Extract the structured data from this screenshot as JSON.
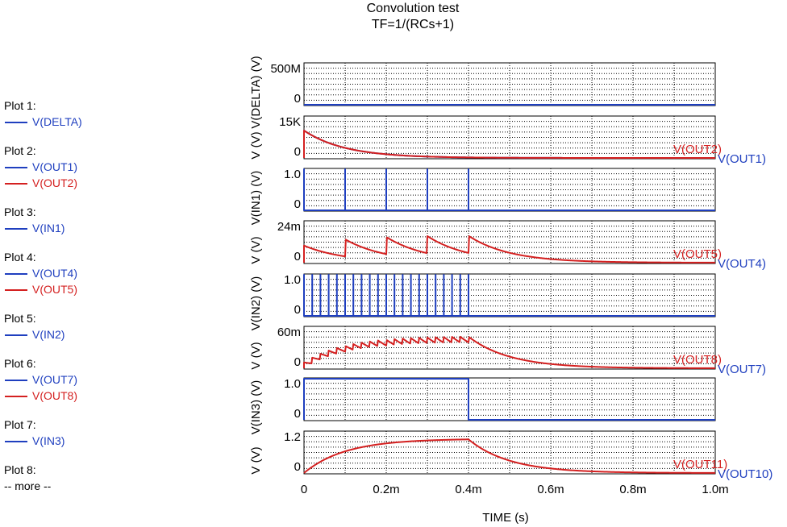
{
  "title_line1": "Convolution test",
  "title_line2": "TF=1/(RCs+1)",
  "legend": {
    "groups": [
      {
        "label": "Plot 1:",
        "items": [
          {
            "name": "V(DELTA)",
            "color": "#1f3fbf"
          }
        ]
      },
      {
        "label": "Plot 2:",
        "items": [
          {
            "name": "V(OUT1)",
            "color": "#1f3fbf"
          },
          {
            "name": "V(OUT2)",
            "color": "#d42020"
          }
        ]
      },
      {
        "label": "Plot 3:",
        "items": [
          {
            "name": "V(IN1)",
            "color": "#1f3fbf"
          }
        ]
      },
      {
        "label": "Plot 4:",
        "items": [
          {
            "name": "V(OUT4)",
            "color": "#1f3fbf"
          },
          {
            "name": "V(OUT5)",
            "color": "#d42020"
          }
        ]
      },
      {
        "label": "Plot 5:",
        "items": [
          {
            "name": "V(IN2)",
            "color": "#1f3fbf"
          }
        ]
      },
      {
        "label": "Plot 6:",
        "items": [
          {
            "name": "V(OUT7)",
            "color": "#1f3fbf"
          },
          {
            "name": "V(OUT8)",
            "color": "#d42020"
          }
        ]
      },
      {
        "label": "Plot 7:",
        "items": [
          {
            "name": "V(IN3)",
            "color": "#1f3fbf"
          }
        ]
      },
      {
        "label": "Plot 8:",
        "items": []
      }
    ],
    "more": "-- more --"
  },
  "chart_data": {
    "type": "line",
    "xlabel": "TIME   (s)",
    "xlim": [
      0,
      0.001
    ],
    "x_ticks": [
      0,
      0.0002,
      0.0004,
      0.0006,
      0.0008,
      0.001
    ],
    "x_tick_labels": [
      "0",
      "0.2m",
      "0.4m",
      "0.6m",
      "0.8m",
      "1.0m"
    ],
    "grid": true,
    "panels": [
      {
        "ylabel": "V(DELTA)   (V)",
        "ylim": [
          0,
          500000000
        ],
        "y_tick_labels": [
          "500M",
          "0"
        ],
        "series": [
          {
            "name": "V(DELTA)",
            "color": "#1f3fbf",
            "kind": "flat",
            "value": 0
          }
        ]
      },
      {
        "ylabel": "V   (V)",
        "ylim": [
          0,
          15000
        ],
        "y_tick_labels": [
          "15K",
          "0"
        ],
        "series": [
          {
            "name": "V(OUT1)",
            "color": "#1f3fbf",
            "kind": "decay",
            "start": 10000,
            "tau": 0.0001
          },
          {
            "name": "V(OUT2)",
            "color": "#d42020",
            "kind": "decay",
            "start": 10000,
            "tau": 0.0001
          }
        ],
        "end_labels": [
          "V(OUT2)",
          "V(OUT1)"
        ]
      },
      {
        "ylabel": "V(IN1)   (V)",
        "ylim": [
          0,
          1.0
        ],
        "y_tick_labels": [
          "1.0",
          "0"
        ],
        "series": [
          {
            "name": "V(IN1)",
            "color": "#1f3fbf",
            "kind": "impulses",
            "times": [
              0,
              0.0001,
              0.0002,
              0.0003,
              0.0004
            ],
            "height": 1.0
          }
        ]
      },
      {
        "ylabel": "V   (V)",
        "ylim": [
          0,
          0.024
        ],
        "y_tick_labels": [
          "24m",
          "0"
        ],
        "series": [
          {
            "name": "V(OUT5)",
            "color": "#d42020",
            "kind": "impulse_response",
            "times": [
              0,
              0.0001,
              0.0002,
              0.0003,
              0.0004
            ],
            "jump": 0.01,
            "tau": 0.0001
          }
        ],
        "end_labels": [
          "V(OUT5)",
          "V(OUT4)"
        ]
      },
      {
        "ylabel": "V(IN2)   (V)",
        "ylim": [
          0,
          1.0
        ],
        "y_tick_labels": [
          "1.0",
          "0"
        ],
        "series": [
          {
            "name": "V(IN2)",
            "color": "#1f3fbf",
            "kind": "impulses",
            "times": [
              0,
              2e-05,
              4e-05,
              6e-05,
              8e-05,
              0.0001,
              0.00012,
              0.00014,
              0.00016,
              0.00018,
              0.0002,
              0.00022,
              0.00024,
              0.00026,
              0.00028,
              0.0003,
              0.00032,
              0.00034,
              0.00036,
              0.00038,
              0.0004
            ],
            "height": 1.0
          }
        ]
      },
      {
        "ylabel": "V   (V)",
        "ylim": [
          0,
          0.06
        ],
        "y_tick_labels": [
          "60m",
          "0"
        ],
        "series": [
          {
            "name": "V(OUT8)",
            "color": "#d42020",
            "kind": "impulse_response",
            "times": [
              0,
              2e-05,
              4e-05,
              6e-05,
              8e-05,
              0.0001,
              0.00012,
              0.00014,
              0.00016,
              0.00018,
              0.0002,
              0.00022,
              0.00024,
              0.00026,
              0.00028,
              0.0003,
              0.00032,
              0.00034,
              0.00036,
              0.00038,
              0.0004
            ],
            "jump": 0.0085,
            "tau": 0.0001
          }
        ],
        "end_labels": [
          "V(OUT8)",
          "V(OUT7)"
        ]
      },
      {
        "ylabel": "V(IN3)   (V)",
        "ylim": [
          0,
          1.0
        ],
        "y_tick_labels": [
          "1.0",
          "0"
        ],
        "series": [
          {
            "name": "V(IN3)",
            "color": "#1f3fbf",
            "kind": "pulse",
            "t_start": 0,
            "t_end": 0.0004,
            "height": 1.0
          }
        ]
      },
      {
        "ylabel": "V   (V)",
        "ylim": [
          0,
          1.2
        ],
        "y_tick_labels": [
          "1.2",
          "0"
        ],
        "series": [
          {
            "name": "V(OUT11)",
            "color": "#d42020",
            "kind": "step_response",
            "t_end": 0.0004,
            "tau": 0.0001,
            "height": 1.0
          }
        ],
        "end_labels": [
          "V(OUT11)",
          "V(OUT10)"
        ]
      }
    ]
  }
}
